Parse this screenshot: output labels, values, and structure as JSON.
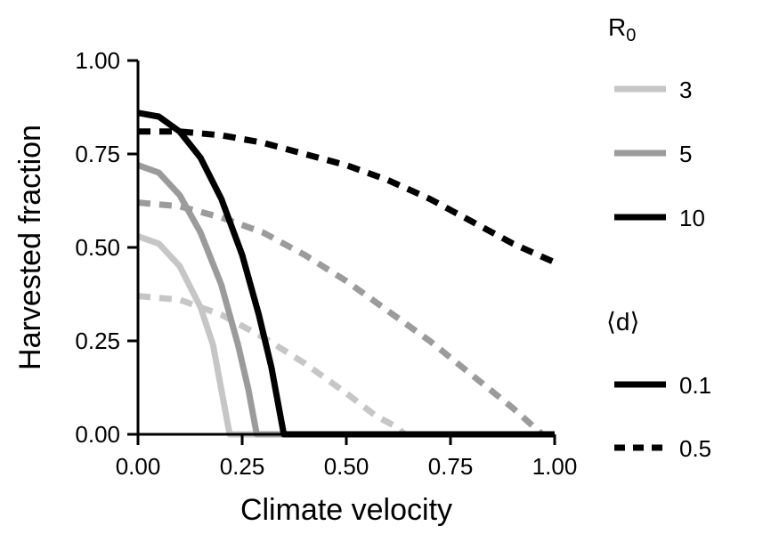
{
  "chart_data": {
    "type": "line",
    "xlabel": "Climate velocity",
    "ylabel": "Harvested fraction",
    "xlim": [
      0,
      1
    ],
    "ylim": [
      0,
      1
    ],
    "xticks": [
      "0.00",
      "0.25",
      "0.50",
      "0.75",
      "1.00"
    ],
    "yticks": [
      "0.00",
      "0.25",
      "0.50",
      "0.75",
      "1.00"
    ],
    "grid": false,
    "legend_placement": "right",
    "legends": {
      "r0": {
        "title_main": "R",
        "title_sub": "0",
        "entries": [
          {
            "label": "3",
            "color": "#c6c6c6"
          },
          {
            "label": "5",
            "color": "#9b9b9b"
          },
          {
            "label": "10",
            "color": "#000000"
          }
        ]
      },
      "d": {
        "title": "⟨d⟩",
        "entries": [
          {
            "label": "0.1",
            "dash": "solid"
          },
          {
            "label": "0.5",
            "dash": "dashed"
          }
        ]
      }
    },
    "series": [
      {
        "r0": "3",
        "d": "0.1",
        "color": "#c6c6c6",
        "dash": "solid",
        "points": [
          [
            0,
            0.53
          ],
          [
            0.05,
            0.51
          ],
          [
            0.1,
            0.45
          ],
          [
            0.15,
            0.34
          ],
          [
            0.18,
            0.24
          ],
          [
            0.2,
            0.12
          ],
          [
            0.215,
            0.03
          ],
          [
            0.22,
            0
          ],
          [
            1,
            0
          ]
        ]
      },
      {
        "r0": "5",
        "d": "0.1",
        "color": "#9b9b9b",
        "dash": "solid",
        "points": [
          [
            0,
            0.72
          ],
          [
            0.05,
            0.7
          ],
          [
            0.1,
            0.64
          ],
          [
            0.15,
            0.54
          ],
          [
            0.2,
            0.4
          ],
          [
            0.24,
            0.24
          ],
          [
            0.265,
            0.12
          ],
          [
            0.28,
            0.03
          ],
          [
            0.285,
            0
          ],
          [
            1,
            0
          ]
        ]
      },
      {
        "r0": "10",
        "d": "0.1",
        "color": "#000000",
        "dash": "solid",
        "points": [
          [
            0,
            0.86
          ],
          [
            0.05,
            0.85
          ],
          [
            0.1,
            0.81
          ],
          [
            0.15,
            0.74
          ],
          [
            0.2,
            0.63
          ],
          [
            0.25,
            0.48
          ],
          [
            0.29,
            0.32
          ],
          [
            0.32,
            0.18
          ],
          [
            0.34,
            0.06
          ],
          [
            0.35,
            0
          ],
          [
            1,
            0
          ]
        ]
      },
      {
        "r0": "3",
        "d": "0.5",
        "color": "#c6c6c6",
        "dash": "dashed",
        "points": [
          [
            0,
            0.37
          ],
          [
            0.1,
            0.36
          ],
          [
            0.2,
            0.32
          ],
          [
            0.3,
            0.26
          ],
          [
            0.4,
            0.19
          ],
          [
            0.5,
            0.11
          ],
          [
            0.57,
            0.05
          ],
          [
            0.62,
            0.02
          ],
          [
            0.64,
            0
          ]
        ]
      },
      {
        "r0": "5",
        "d": "0.5",
        "color": "#9b9b9b",
        "dash": "dashed",
        "points": [
          [
            0,
            0.62
          ],
          [
            0.1,
            0.61
          ],
          [
            0.2,
            0.58
          ],
          [
            0.3,
            0.54
          ],
          [
            0.4,
            0.48
          ],
          [
            0.5,
            0.41
          ],
          [
            0.6,
            0.33
          ],
          [
            0.7,
            0.25
          ],
          [
            0.8,
            0.16
          ],
          [
            0.9,
            0.07
          ],
          [
            0.95,
            0.02
          ],
          [
            0.97,
            0
          ]
        ]
      },
      {
        "r0": "10",
        "d": "0.5",
        "color": "#000000",
        "dash": "dashed",
        "points": [
          [
            0,
            0.81
          ],
          [
            0.1,
            0.81
          ],
          [
            0.2,
            0.8
          ],
          [
            0.3,
            0.78
          ],
          [
            0.4,
            0.75
          ],
          [
            0.5,
            0.72
          ],
          [
            0.6,
            0.68
          ],
          [
            0.7,
            0.63
          ],
          [
            0.8,
            0.57
          ],
          [
            0.9,
            0.51
          ],
          [
            1.0,
            0.46
          ]
        ]
      }
    ]
  }
}
